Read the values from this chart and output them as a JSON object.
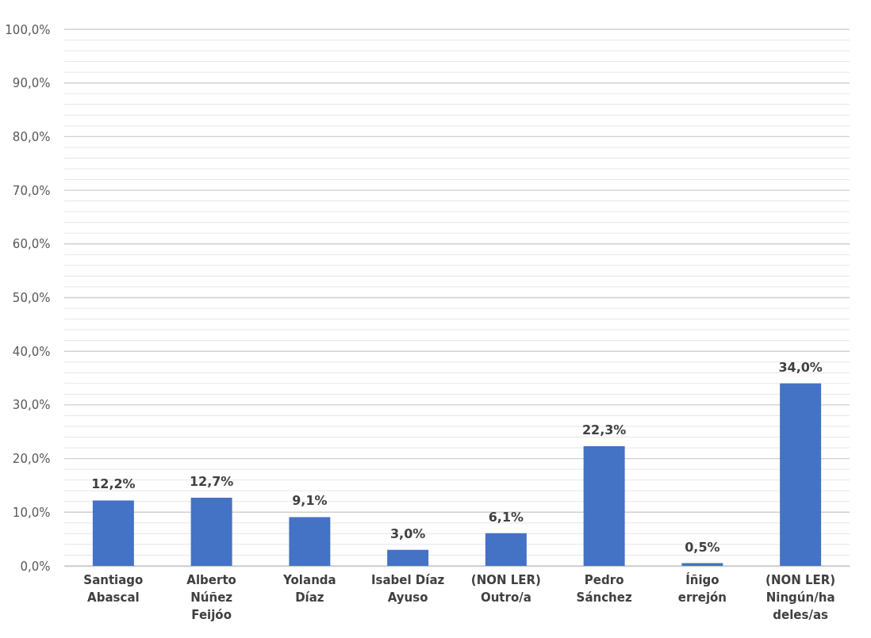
{
  "chart_data": {
    "type": "bar",
    "categories": [
      "Santiago Abascal",
      "Alberto Núñez Feijóo",
      "Yolanda Díaz",
      "Isabel Díaz Ayuso",
      "(NON LER) Outro/a",
      "Pedro Sánchez",
      "Íñigo errejón",
      "(NON LER) Ningún/ha deles/as"
    ],
    "values": [
      12.2,
      12.7,
      9.1,
      3.0,
      6.1,
      22.3,
      0.5,
      34.0
    ],
    "value_labels": [
      "12,2%",
      "12,7%",
      "9,1%",
      "3,0%",
      "6,1%",
      "22,3%",
      "0,5%",
      "34,0%"
    ],
    "color": "#4472c4",
    "ylim": [
      0,
      100
    ],
    "yticks": [
      {
        "value": 0,
        "label": "0,0%"
      },
      {
        "value": 2,
        "label": null
      },
      {
        "value": 4,
        "label": null
      },
      {
        "value": 6,
        "label": null
      },
      {
        "value": 8,
        "label": null
      },
      {
        "value": 10,
        "label": "10,0%"
      },
      {
        "value": 12,
        "label": null
      },
      {
        "value": 14,
        "label": null
      },
      {
        "value": 16,
        "label": null
      },
      {
        "value": 18,
        "label": null
      },
      {
        "value": 20,
        "label": "20,0%"
      },
      {
        "value": 22,
        "label": null
      },
      {
        "value": 24,
        "label": null
      },
      {
        "value": 26,
        "label": null
      },
      {
        "value": 28,
        "label": null
      },
      {
        "value": 30,
        "label": "30,0%"
      },
      {
        "value": 32,
        "label": null
      },
      {
        "value": 34,
        "label": null
      },
      {
        "value": 36,
        "label": null
      },
      {
        "value": 38,
        "label": null
      },
      {
        "value": 40,
        "label": "40,0%"
      },
      {
        "value": 42,
        "label": null
      },
      {
        "value": 44,
        "label": null
      },
      {
        "value": 46,
        "label": null
      },
      {
        "value": 48,
        "label": null
      },
      {
        "value": 50,
        "label": "50,0%"
      },
      {
        "value": 52,
        "label": null
      },
      {
        "value": 54,
        "label": null
      },
      {
        "value": 56,
        "label": null
      },
      {
        "value": 58,
        "label": null
      },
      {
        "value": 60,
        "label": "60,0%"
      },
      {
        "value": 62,
        "label": null
      },
      {
        "value": 64,
        "label": null
      },
      {
        "value": 66,
        "label": null
      },
      {
        "value": 68,
        "label": null
      },
      {
        "value": 70,
        "label": "70,0%"
      },
      {
        "value": 72,
        "label": null
      },
      {
        "value": 74,
        "label": null
      },
      {
        "value": 76,
        "label": null
      },
      {
        "value": 78,
        "label": null
      },
      {
        "value": 80,
        "label": "80,0%"
      },
      {
        "value": 82,
        "label": null
      },
      {
        "value": 84,
        "label": null
      },
      {
        "value": 86,
        "label": null
      },
      {
        "value": 88,
        "label": null
      },
      {
        "value": 90,
        "label": "90,0%"
      },
      {
        "value": 92,
        "label": null
      },
      {
        "value": 94,
        "label": null
      },
      {
        "value": 96,
        "label": null
      },
      {
        "value": 98,
        "label": null
      },
      {
        "value": 100,
        "label": "100,0%"
      }
    ],
    "grid": "y"
  }
}
